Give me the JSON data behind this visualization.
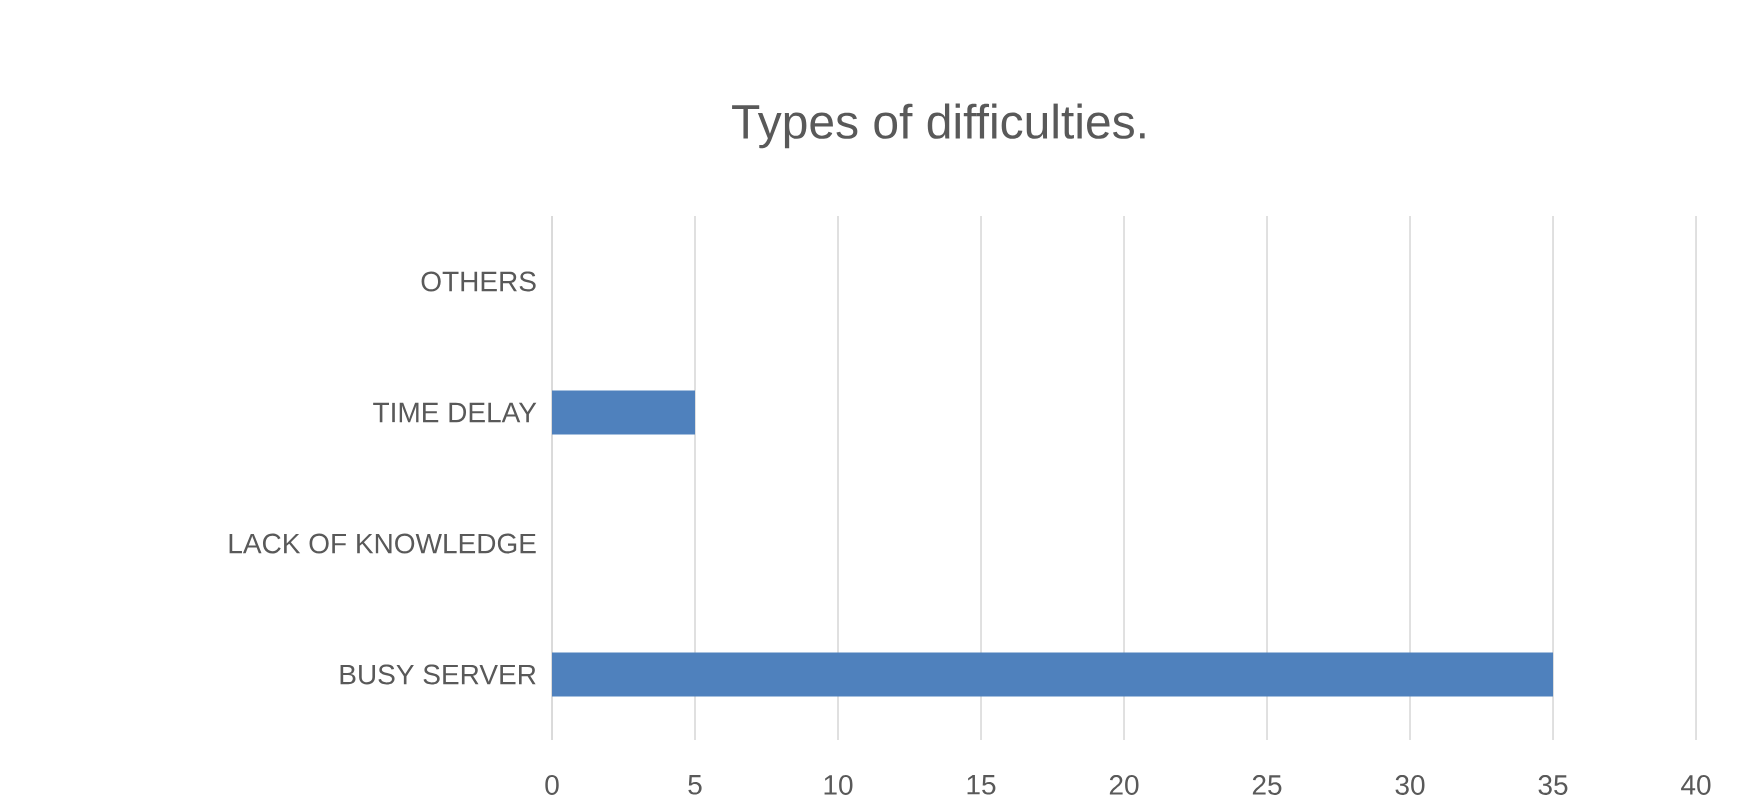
{
  "chart_data": {
    "type": "bar",
    "orientation": "horizontal",
    "title": "Types of difficulties.",
    "categories": [
      "OTHERS",
      "TIME DELAY",
      "LACK OF KNOWLEDGE",
      "BUSY SERVER"
    ],
    "values": [
      0,
      5,
      0,
      35
    ],
    "color": "#4f81bd",
    "xlim": [
      0,
      40
    ],
    "xticks": [
      0,
      5,
      10,
      15,
      20,
      25,
      30,
      35,
      40
    ],
    "grid": "x"
  }
}
